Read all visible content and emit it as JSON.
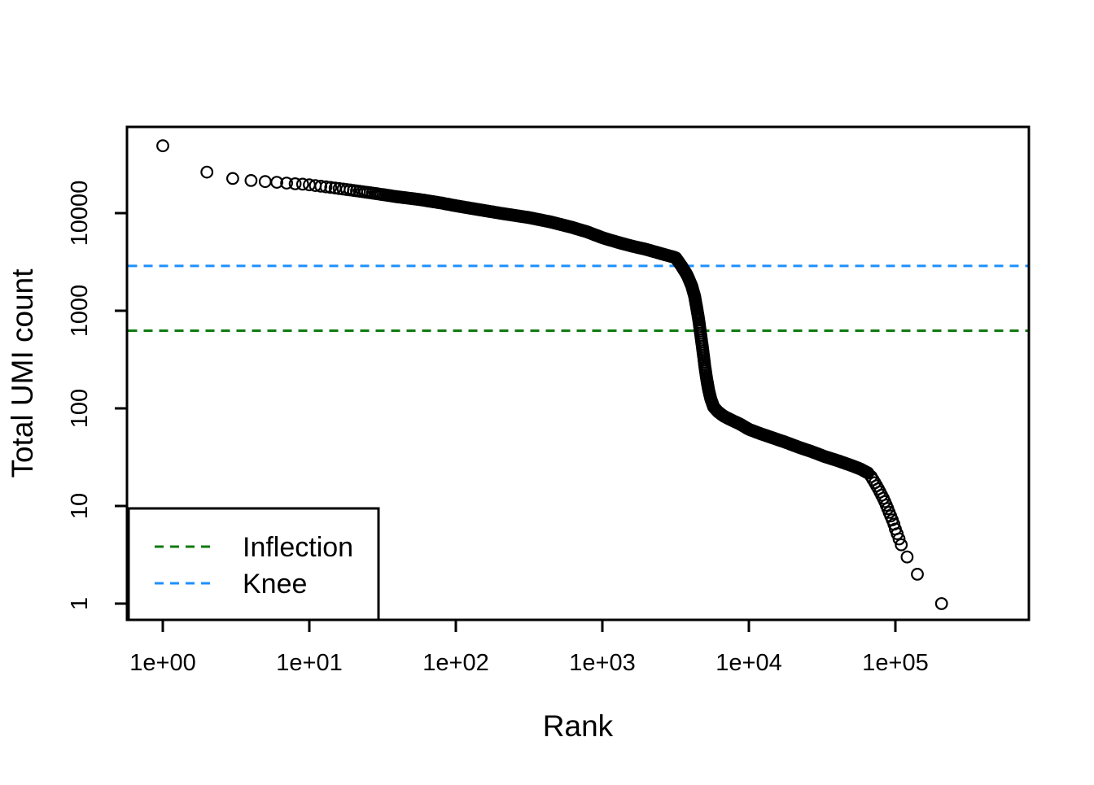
{
  "page": {
    "background": "#ffffff"
  },
  "chart_data": {
    "type": "scatter",
    "title": "",
    "xlabel": "Rank",
    "ylabel": "Total UMI count",
    "scale": "log-log",
    "grid": false,
    "point_style": {
      "shape": "open-circle",
      "color": "#000000"
    },
    "x_ticks": [
      {
        "label": "1e+00",
        "log10": 0
      },
      {
        "label": "1e+01",
        "log10": 1
      },
      {
        "label": "1e+02",
        "log10": 2
      },
      {
        "label": "1e+03",
        "log10": 3
      },
      {
        "label": "1e+04",
        "log10": 4
      },
      {
        "label": "1e+05",
        "log10": 5
      }
    ],
    "y_ticks": [
      {
        "label": "1",
        "log10": 0
      },
      {
        "label": "10",
        "log10": 1
      },
      {
        "label": "100",
        "log10": 2
      },
      {
        "label": "1000",
        "log10": 3
      },
      {
        "label": "10000",
        "log10": 4
      }
    ],
    "xlim_log10": [
      -0.2444,
      5.9111
    ],
    "ylim_log10": [
      -0.1667,
      4.8833
    ],
    "reference_lines": [
      {
        "label": "Inflection",
        "value": 625,
        "color": "#0F7A0F",
        "style": "dashed"
      },
      {
        "label": "Knee",
        "value": 2880,
        "color": "#1E90FF",
        "style": "dashed"
      }
    ],
    "legend": {
      "position": "bottomleft",
      "entries": [
        {
          "label": "Inflection",
          "color": "#0F7A0F"
        },
        {
          "label": "Knee",
          "color": "#1E90FF"
        }
      ]
    },
    "series": [
      {
        "name": "barcode-rank-curve",
        "integer_ranks_through": 45,
        "band_log10_range": [
          1.653,
          4.82
        ],
        "anchors_log10rank_count": [
          [
            0.0,
            49000
          ],
          [
            0.292,
            26500
          ],
          [
            0.462,
            22800
          ],
          [
            0.585,
            21700
          ],
          [
            0.69,
            21100
          ],
          [
            0.778,
            20700
          ],
          [
            0.845,
            20300
          ],
          [
            0.903,
            20000
          ],
          [
            0.954,
            19800
          ],
          [
            1.0,
            19500
          ],
          [
            1.15,
            18300
          ],
          [
            1.3,
            17100
          ],
          [
            1.45,
            15900
          ],
          [
            1.6,
            14700
          ],
          [
            1.75,
            13800
          ],
          [
            1.9,
            12700
          ],
          [
            2.0,
            11900
          ],
          [
            2.15,
            10900
          ],
          [
            2.3,
            10000
          ],
          [
            2.5,
            9000
          ],
          [
            2.65,
            8100
          ],
          [
            2.8,
            7100
          ],
          [
            2.9,
            6400
          ],
          [
            3.0,
            5600
          ],
          [
            3.1,
            5050
          ],
          [
            3.2,
            4600
          ],
          [
            3.3,
            4250
          ],
          [
            3.4,
            3850
          ],
          [
            3.5,
            3500
          ],
          [
            3.54,
            2880
          ],
          [
            3.58,
            2300
          ],
          [
            3.61,
            1800
          ],
          [
            3.63,
            1400
          ],
          [
            3.645,
            1050
          ],
          [
            3.658,
            800
          ],
          [
            3.668,
            620
          ],
          [
            3.678,
            480
          ],
          [
            3.69,
            350
          ],
          [
            3.7,
            265
          ],
          [
            3.712,
            200
          ],
          [
            3.725,
            155
          ],
          [
            3.74,
            125
          ],
          [
            3.76,
            103
          ],
          [
            3.79,
            92
          ],
          [
            3.83,
            83
          ],
          [
            3.88,
            76
          ],
          [
            3.94,
            69
          ],
          [
            4.0,
            61
          ],
          [
            4.08,
            55
          ],
          [
            4.16,
            50
          ],
          [
            4.25,
            45
          ],
          [
            4.34,
            40
          ],
          [
            4.43,
            36
          ],
          [
            4.52,
            32
          ],
          [
            4.61,
            29
          ],
          [
            4.7,
            26
          ],
          [
            4.76,
            24
          ],
          [
            4.82,
            21.5
          ]
        ],
        "tail_points_log10rank_count": [
          [
            4.835,
            20
          ],
          [
            4.848,
            18.6
          ],
          [
            4.86,
            17.3
          ],
          [
            4.872,
            16.1
          ],
          [
            4.884,
            15.0
          ],
          [
            4.895,
            13.9
          ],
          [
            4.906,
            12.9
          ],
          [
            4.917,
            12.0
          ],
          [
            4.928,
            11.1
          ],
          [
            4.938,
            10.2
          ],
          [
            4.948,
            9.4
          ],
          [
            4.958,
            8.6
          ],
          [
            4.968,
            7.9
          ],
          [
            4.979,
            7.2
          ],
          [
            4.99,
            6.5
          ],
          [
            5.0,
            5.8
          ],
          [
            5.012,
            5.2
          ],
          [
            5.025,
            4.6
          ],
          [
            5.04,
            4.0
          ],
          [
            5.08,
            3.0
          ],
          [
            5.15,
            2.0
          ],
          [
            5.315,
            1.0
          ]
        ]
      }
    ]
  }
}
